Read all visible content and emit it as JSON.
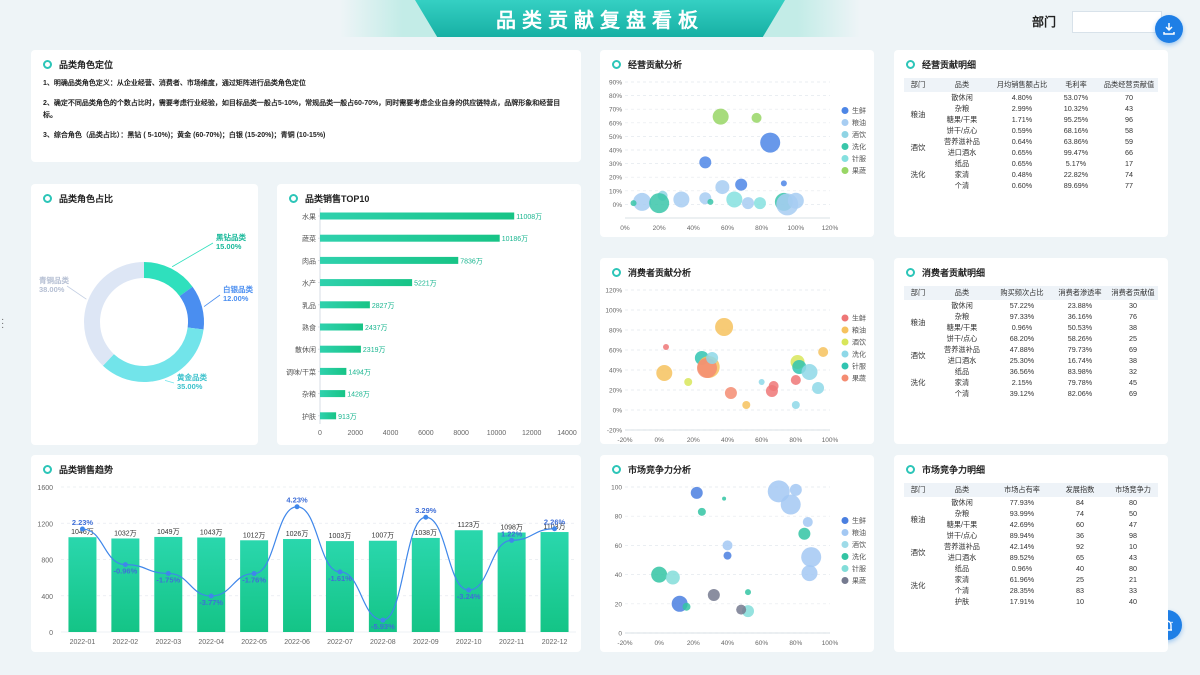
{
  "header": {
    "title": "品类贡献复盘看板",
    "dept_label": "部门"
  },
  "intro": {
    "title": "品类角色定位",
    "lines": [
      "1、明确品类角色定义：从企业经营、消费者、市场维度，通过矩阵进行品类角色定位",
      "2、确定不同品类角色的个数占比时，需要考虑行业经验，如目标品类一般占5-10%，常规品类一般占60-70%，同时需要考虑企业自身的供应链特点，品牌形象和经营目标。",
      "3、综合角色（品类占比）：黑钻 ( 5-10%)；黄金 (60-70%)；白银 (15-20%)；青铜 (10-15%)"
    ]
  },
  "colors": {
    "accent": "#2cc5b8",
    "blue": "#1f7fe6"
  },
  "donut": {
    "title": "品类角色占比",
    "chart_data": {
      "type": "pie",
      "slices": [
        {
          "name": "黑钻品类",
          "value": 15.0,
          "label": "15.00%",
          "color": "#2fe0bd"
        },
        {
          "name": "白银品类",
          "value": 12.0,
          "label": "12.00%",
          "color": "#4a8ef0"
        },
        {
          "name": "黄金品类",
          "value": 35.0,
          "label": "35.00%",
          "color": "#72e4ea"
        },
        {
          "name": "青铜品类",
          "value": 38.0,
          "label": "38.00%",
          "color": "#dde6f5"
        }
      ]
    }
  },
  "top10": {
    "title": "品类销售TOP10",
    "chart_data": {
      "type": "bar",
      "orientation": "horizontal",
      "categories": [
        "水果",
        "蔬菜",
        "肉品",
        "水产",
        "乳品",
        "熟食",
        "散休闲",
        "调味/干菜",
        "杂粮",
        "护肤"
      ],
      "values": [
        11008,
        10186,
        7836,
        5221,
        2827,
        2437,
        2319,
        1494,
        1428,
        913
      ],
      "labels": [
        "11008万",
        "10186万",
        "7836万",
        "5221万",
        "2827万",
        "2437万",
        "2319万",
        "1494万",
        "1428万",
        "913万"
      ],
      "xlim": [
        0,
        14000
      ],
      "xticks": [
        "0",
        "2000",
        "4000",
        "6000",
        "8000",
        "10000",
        "12000",
        "14000"
      ]
    }
  },
  "trend": {
    "title": "品类销售趋势",
    "chart_data": {
      "type": "bar",
      "categories": [
        "2022-01",
        "2022-02",
        "2022-03",
        "2022-04",
        "2022-05",
        "2022-06",
        "2022-07",
        "2022-08",
        "2022-09",
        "2022-10",
        "2022-11",
        "2022-12"
      ],
      "values": [
        1046,
        1032,
        1049,
        1043,
        1012,
        1026,
        1003,
        1007,
        1038,
        1123,
        1098,
        1103
      ],
      "value_labels": [
        "1046万",
        "1032万",
        "1049万",
        "1043万",
        "1012万",
        "1026万",
        "1003万",
        "1007万",
        "1038万",
        "1123万",
        "1098万",
        "1103万"
      ],
      "ylim": [
        0,
        1600
      ],
      "yticks": [
        "0",
        "400",
        "800",
        "1200",
        "1600"
      ],
      "line": [
        2.23,
        -0.96,
        -1.75,
        -3.77,
        -1.76,
        4.23,
        -1.61,
        -5.93,
        3.29,
        -3.24,
        1.22,
        2.26
      ],
      "line_labels": [
        "2.23%",
        "-0.96%",
        "-1.75%",
        "-3.77%",
        "-1.76%",
        "4.23%",
        "-1.61%",
        "-5.93%",
        "3.29%",
        "-3.24%",
        "1.22%",
        "2.26%"
      ],
      "line_range": [
        -7,
        6
      ]
    }
  },
  "biz": {
    "title": "经营贡献分析",
    "chart_data": {
      "type": "scatter",
      "xlim": [
        0,
        120
      ],
      "ylim": [
        -10,
        100
      ],
      "xticks": [
        "0%",
        "20%",
        "40%",
        "60%",
        "80%",
        "100%",
        "120%"
      ],
      "yticks": [
        "0%",
        "10%",
        "20%",
        "30%",
        "40%",
        "50%",
        "60%",
        "70%",
        "80%",
        "90%"
      ],
      "legend": [
        {
          "name": "生鲜",
          "color": "#4d86e6"
        },
        {
          "name": "粮油",
          "color": "#a7cdf2"
        },
        {
          "name": "酒饮",
          "color": "#8fd4e4"
        },
        {
          "name": "洗化",
          "color": "#39c6a9"
        },
        {
          "name": "针服",
          "color": "#85e0df"
        },
        {
          "name": "果蔬",
          "color": "#98d665"
        }
      ],
      "points": [
        {
          "x": 56,
          "y": 72,
          "r": 8,
          "s": 5
        },
        {
          "x": 77,
          "y": 71,
          "r": 5,
          "s": 5
        },
        {
          "x": 85,
          "y": 51,
          "r": 10,
          "s": 0
        },
        {
          "x": 47,
          "y": 35,
          "r": 6,
          "s": 0
        },
        {
          "x": 68,
          "y": 17,
          "r": 6,
          "s": 0
        },
        {
          "x": 93,
          "y": 18,
          "r": 3,
          "s": 0
        },
        {
          "x": 57,
          "y": 15,
          "r": 7,
          "s": 1
        },
        {
          "x": 22,
          "y": 8,
          "r": 5,
          "s": 2
        },
        {
          "x": 10,
          "y": 3,
          "r": 9,
          "s": 1
        },
        {
          "x": 33,
          "y": 5,
          "r": 8,
          "s": 1
        },
        {
          "x": 47,
          "y": 6,
          "r": 6,
          "s": 1
        },
        {
          "x": 50,
          "y": 3,
          "r": 3,
          "s": 3
        },
        {
          "x": 64,
          "y": 5,
          "r": 8,
          "s": 4
        },
        {
          "x": 72,
          "y": 2,
          "r": 6,
          "s": 1
        },
        {
          "x": 79,
          "y": 2,
          "r": 6,
          "s": 4
        },
        {
          "x": 93,
          "y": 3,
          "r": 9,
          "s": 3
        },
        {
          "x": 95,
          "y": 1,
          "r": 11,
          "s": 1
        },
        {
          "x": 20,
          "y": 2,
          "r": 10,
          "s": 3
        },
        {
          "x": 5,
          "y": 2,
          "r": 3,
          "s": 3
        },
        {
          "x": 100,
          "y": 4,
          "r": 8,
          "s": 1
        }
      ]
    }
  },
  "bizTable": {
    "title": "经营贡献明细",
    "headers": [
      "部门",
      "品类",
      "月均销售额占比",
      "毛利率",
      "品类经营贡献值"
    ],
    "groups": [
      {
        "dept": "粮油",
        "rows": [
          [
            "散休闲",
            "4.80%",
            "53.07%",
            "70"
          ],
          [
            "杂粮",
            "2.99%",
            "10.32%",
            "43"
          ],
          [
            "糖果/干果",
            "1.71%",
            "95.25%",
            "96"
          ],
          [
            "饼干/点心",
            "0.59%",
            "68.16%",
            "58"
          ]
        ]
      },
      {
        "dept": "酒饮",
        "rows": [
          [
            "营养滋补品",
            "0.64%",
            "63.86%",
            "59"
          ],
          [
            "进口酒水",
            "0.65%",
            "99.47%",
            "66"
          ]
        ]
      },
      {
        "dept": "洗化",
        "rows": [
          [
            "纸品",
            "0.65%",
            "5.17%",
            "17"
          ],
          [
            "家清",
            "0.48%",
            "22.82%",
            "74"
          ],
          [
            "个清",
            "0.60%",
            "89.69%",
            "77"
          ]
        ]
      }
    ]
  },
  "cons": {
    "title": "消费者贡献分析",
    "chart_data": {
      "type": "scatter",
      "xlim": [
        -20,
        100
      ],
      "ylim": [
        -20,
        120
      ],
      "xticks": [
        "-20%",
        "0%",
        "20%",
        "40%",
        "60%",
        "80%",
        "100%"
      ],
      "yticks": [
        "-20%",
        "0%",
        "20%",
        "40%",
        "60%",
        "80%",
        "100%",
        "120%"
      ],
      "legend": [
        {
          "name": "生鲜",
          "color": "#ee7777"
        },
        {
          "name": "粮油",
          "color": "#f6c25e"
        },
        {
          "name": "酒饮",
          "color": "#d8e65a"
        },
        {
          "name": "洗化",
          "color": "#8ed8e8"
        },
        {
          "name": "针服",
          "color": "#30c4b1"
        },
        {
          "name": "果蔬",
          "color": "#f48c72"
        }
      ],
      "points": [
        {
          "x": 38,
          "y": 83,
          "r": 9,
          "s": 1
        },
        {
          "x": 4,
          "y": 63,
          "r": 3,
          "s": 0
        },
        {
          "x": 25,
          "y": 52,
          "r": 7,
          "s": 4
        },
        {
          "x": 29,
          "y": 43,
          "r": 11,
          "s": 1
        },
        {
          "x": 28,
          "y": 42,
          "r": 10,
          "s": 5
        },
        {
          "x": 31,
          "y": 52,
          "r": 6,
          "s": 3
        },
        {
          "x": 3,
          "y": 37,
          "r": 8,
          "s": 1
        },
        {
          "x": 17,
          "y": 28,
          "r": 4,
          "s": 2
        },
        {
          "x": 42,
          "y": 17,
          "r": 6,
          "s": 5
        },
        {
          "x": 51,
          "y": 5,
          "r": 4,
          "s": 1
        },
        {
          "x": 66,
          "y": 19,
          "r": 6,
          "s": 0
        },
        {
          "x": 67,
          "y": 24,
          "r": 5,
          "s": 0
        },
        {
          "x": 80,
          "y": 30,
          "r": 5,
          "s": 0
        },
        {
          "x": 81,
          "y": 48,
          "r": 7,
          "s": 2
        },
        {
          "x": 82,
          "y": 43,
          "r": 7,
          "s": 4
        },
        {
          "x": 88,
          "y": 38,
          "r": 8,
          "s": 3
        },
        {
          "x": 96,
          "y": 58,
          "r": 5,
          "s": 1
        },
        {
          "x": 93,
          "y": 22,
          "r": 6,
          "s": 3
        },
        {
          "x": 80,
          "y": 5,
          "r": 4,
          "s": 3
        },
        {
          "x": 60,
          "y": 28,
          "r": 3,
          "s": 3
        }
      ]
    }
  },
  "consTable": {
    "title": "消费者贡献明细",
    "headers": [
      "部门",
      "品类",
      "购买频次占比",
      "消费者渗透率",
      "消费者贡献值"
    ],
    "groups": [
      {
        "dept": "粮油",
        "rows": [
          [
            "散休闲",
            "57.22%",
            "23.88%",
            "30"
          ],
          [
            "杂粮",
            "97.33%",
            "36.16%",
            "76"
          ],
          [
            "糖果/干果",
            "0.96%",
            "50.53%",
            "38"
          ],
          [
            "饼干/点心",
            "68.20%",
            "58.26%",
            "25"
          ]
        ]
      },
      {
        "dept": "酒饮",
        "rows": [
          [
            "营养滋补品",
            "47.88%",
            "79.73%",
            "69"
          ],
          [
            "进口酒水",
            "25.30%",
            "16.74%",
            "38"
          ]
        ]
      },
      {
        "dept": "洗化",
        "rows": [
          [
            "纸品",
            "36.56%",
            "83.98%",
            "32"
          ],
          [
            "家清",
            "2.15%",
            "79.78%",
            "45"
          ],
          [
            "个清",
            "39.12%",
            "82.06%",
            "69"
          ]
        ]
      }
    ]
  },
  "mkt": {
    "title": "市场竞争力分析",
    "chart_data": {
      "type": "scatter",
      "xlim": [
        -20,
        100
      ],
      "ylim": [
        0,
        100
      ],
      "xticks": [
        "-20%",
        "0%",
        "20%",
        "40%",
        "60%",
        "80%",
        "100%"
      ],
      "yticks": [
        "0",
        "20",
        "40",
        "60",
        "80",
        "100"
      ],
      "legend": [
        {
          "name": "生鲜",
          "color": "#4a7fe0"
        },
        {
          "name": "粮油",
          "color": "#a3c8f3"
        },
        {
          "name": "酒饮",
          "color": "#9edbe8"
        },
        {
          "name": "洗化",
          "color": "#33c4a3"
        },
        {
          "name": "针服",
          "color": "#82ddd9"
        },
        {
          "name": "果蔬",
          "color": "#757a8f"
        }
      ],
      "points": [
        {
          "x": 22,
          "y": 96,
          "r": 6,
          "s": 0
        },
        {
          "x": 25,
          "y": 83,
          "r": 4,
          "s": 3
        },
        {
          "x": 38,
          "y": 92,
          "r": 2,
          "s": 3
        },
        {
          "x": 70,
          "y": 97,
          "r": 11,
          "s": 1
        },
        {
          "x": 77,
          "y": 88,
          "r": 10,
          "s": 1
        },
        {
          "x": 80,
          "y": 98,
          "r": 6,
          "s": 1
        },
        {
          "x": 87,
          "y": 76,
          "r": 5,
          "s": 1
        },
        {
          "x": 85,
          "y": 68,
          "r": 6,
          "s": 3
        },
        {
          "x": 89,
          "y": 52,
          "r": 10,
          "s": 1
        },
        {
          "x": 88,
          "y": 41,
          "r": 8,
          "s": 1
        },
        {
          "x": 40,
          "y": 60,
          "r": 5,
          "s": 1
        },
        {
          "x": 40,
          "y": 53,
          "r": 4,
          "s": 0
        },
        {
          "x": 0,
          "y": 40,
          "r": 8,
          "s": 3
        },
        {
          "x": 8,
          "y": 38,
          "r": 7,
          "s": 4
        },
        {
          "x": 12,
          "y": 20,
          "r": 8,
          "s": 0
        },
        {
          "x": 16,
          "y": 18,
          "r": 4,
          "s": 3
        },
        {
          "x": 32,
          "y": 26,
          "r": 6,
          "s": 5
        },
        {
          "x": 52,
          "y": 28,
          "r": 3,
          "s": 3
        },
        {
          "x": 52,
          "y": 15,
          "r": 6,
          "s": 4
        },
        {
          "x": 48,
          "y": 16,
          "r": 5,
          "s": 5
        }
      ]
    }
  },
  "mktTable": {
    "title": "市场竞争力明细",
    "headers": [
      "部门",
      "品类",
      "市场占有率",
      "发展指数",
      "市场竞争力"
    ],
    "groups": [
      {
        "dept": "粮油",
        "rows": [
          [
            "散休闲",
            "77.93%",
            "84",
            "80"
          ],
          [
            "杂粮",
            "93.99%",
            "74",
            "50"
          ],
          [
            "糖果/干果",
            "42.69%",
            "60",
            "47"
          ],
          [
            "饼干/点心",
            "89.94%",
            "36",
            "98"
          ]
        ]
      },
      {
        "dept": "酒饮",
        "rows": [
          [
            "营养滋补品",
            "42.14%",
            "92",
            "10"
          ],
          [
            "进口酒水",
            "89.52%",
            "65",
            "43"
          ]
        ]
      },
      {
        "dept": "洗化",
        "rows": [
          [
            "纸品",
            "0.96%",
            "40",
            "80"
          ],
          [
            "家清",
            "61.96%",
            "25",
            "21"
          ],
          [
            "个清",
            "28.35%",
            "83",
            "33"
          ],
          [
            "护肤",
            "17.91%",
            "10",
            "40"
          ]
        ]
      }
    ]
  }
}
